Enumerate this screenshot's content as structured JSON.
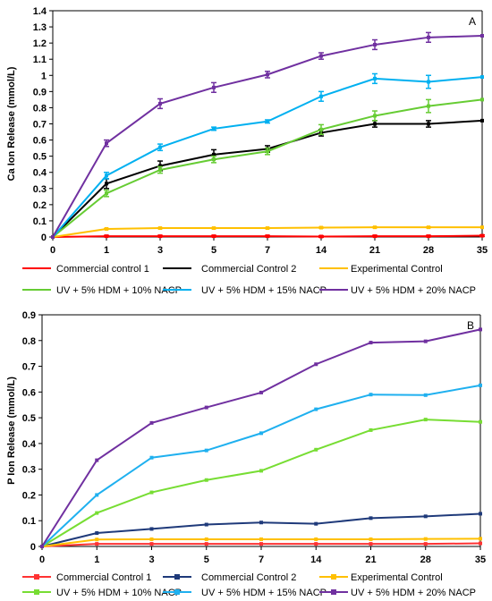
{
  "chart_data": [
    {
      "type": "line",
      "panel_label": "A",
      "ylabel": "Ca Ion Release (mmol/L)",
      "xlabel": "",
      "categories": [
        "0",
        "1",
        "3",
        "5",
        "7",
        "14",
        "21",
        "28",
        "35"
      ],
      "yticks": [
        "0",
        "0.1",
        "0.2",
        "0.3",
        "0.4",
        "0.5",
        "0.6",
        "0.7",
        "0.8",
        "0.9",
        "1",
        "1.1",
        "1.2",
        "1.3",
        "1.4"
      ],
      "ylim": [
        0,
        1.4
      ],
      "grid": false,
      "legend_position": "bottom",
      "error_bars": true,
      "series": [
        {
          "name": "Commercial control 1",
          "color": "#ff0000",
          "values": [
            0,
            0.005,
            0.005,
            0.005,
            0.005,
            0.003,
            0.005,
            0.005,
            0.008
          ],
          "errors": [
            0,
            0.005,
            0.005,
            0.005,
            0.005,
            0.005,
            0.005,
            0.005,
            0.005
          ]
        },
        {
          "name": "Commercial Control 2",
          "color": "#000000",
          "values": [
            0,
            0.33,
            0.44,
            0.51,
            0.545,
            0.645,
            0.7,
            0.7,
            0.72
          ],
          "errors": [
            0,
            0.03,
            0.03,
            0.03,
            0.02,
            0.02,
            0.02,
            0.02,
            0
          ]
        },
        {
          "name": "Experimental Control",
          "color": "#ffc000",
          "values": [
            0,
            0.05,
            0.055,
            0.055,
            0.055,
            0.058,
            0.06,
            0.06,
            0.06
          ],
          "errors": [
            0,
            0.003,
            0.003,
            0.003,
            0.003,
            0.003,
            0.003,
            0.003,
            0
          ]
        },
        {
          "name": "UV + 5% HDM + 10% NACP",
          "color": "#66cc33",
          "values": [
            0,
            0.27,
            0.415,
            0.48,
            0.53,
            0.665,
            0.75,
            0.81,
            0.85
          ],
          "errors": [
            0,
            0.02,
            0.02,
            0.02,
            0.02,
            0.03,
            0.03,
            0.04,
            0
          ]
        },
        {
          "name": "UV + 5% HDM + 15% NACP",
          "color": "#00b0f0",
          "values": [
            0,
            0.38,
            0.555,
            0.67,
            0.715,
            0.87,
            0.98,
            0.96,
            0.99
          ],
          "errors": [
            0,
            0.02,
            0.02,
            0.01,
            0.01,
            0.03,
            0.03,
            0.04,
            0
          ]
        },
        {
          "name": "UV + 5% HDM + 20% NACP",
          "color": "#7030a0",
          "values": [
            0,
            0.58,
            0.825,
            0.925,
            1.005,
            1.12,
            1.19,
            1.235,
            1.245
          ],
          "errors": [
            0,
            0.02,
            0.03,
            0.03,
            0.02,
            0.02,
            0.03,
            0.03,
            0
          ]
        }
      ]
    },
    {
      "type": "line",
      "panel_label": "B",
      "ylabel": "P Ion Release (mmol/L)",
      "xlabel": "",
      "categories": [
        "0",
        "1",
        "3",
        "5",
        "7",
        "14",
        "21",
        "28",
        "35"
      ],
      "yticks": [
        "0",
        "0.1",
        "0.2",
        "0.3",
        "0.4",
        "0.5",
        "0.6",
        "0.7",
        "0.8",
        "0.9"
      ],
      "ylim": [
        0,
        0.9
      ],
      "grid": false,
      "legend_position": "bottom",
      "error_bars": false,
      "series": [
        {
          "name": "Commercial Control 1",
          "color": "#ff3333",
          "values": [
            0,
            0.01,
            0.01,
            0.01,
            0.01,
            0.01,
            0.01,
            0.01,
            0.012
          ]
        },
        {
          "name": "Commercial Control 2",
          "color": "#1f3a7a",
          "values": [
            0,
            0.052,
            0.068,
            0.085,
            0.093,
            0.088,
            0.11,
            0.117,
            0.127
          ]
        },
        {
          "name": "Experimental Control",
          "color": "#ffc000",
          "values": [
            0,
            0.027,
            0.028,
            0.028,
            0.028,
            0.028,
            0.028,
            0.029,
            0.03
          ]
        },
        {
          "name": "UV + 5% HDM + 10% NACP",
          "color": "#77dd33",
          "values": [
            0,
            0.13,
            0.21,
            0.258,
            0.294,
            0.376,
            0.452,
            0.493,
            0.484
          ]
        },
        {
          "name": "UV + 5% HDM + 15% NACP",
          "color": "#1fb0ef",
          "values": [
            0,
            0.2,
            0.345,
            0.373,
            0.44,
            0.533,
            0.59,
            0.588,
            0.626
          ]
        },
        {
          "name": "UV + 5% HDM + 20% NACP",
          "color": "#7030a0",
          "values": [
            0,
            0.335,
            0.48,
            0.54,
            0.598,
            0.708,
            0.792,
            0.797,
            0.843
          ]
        }
      ]
    }
  ]
}
